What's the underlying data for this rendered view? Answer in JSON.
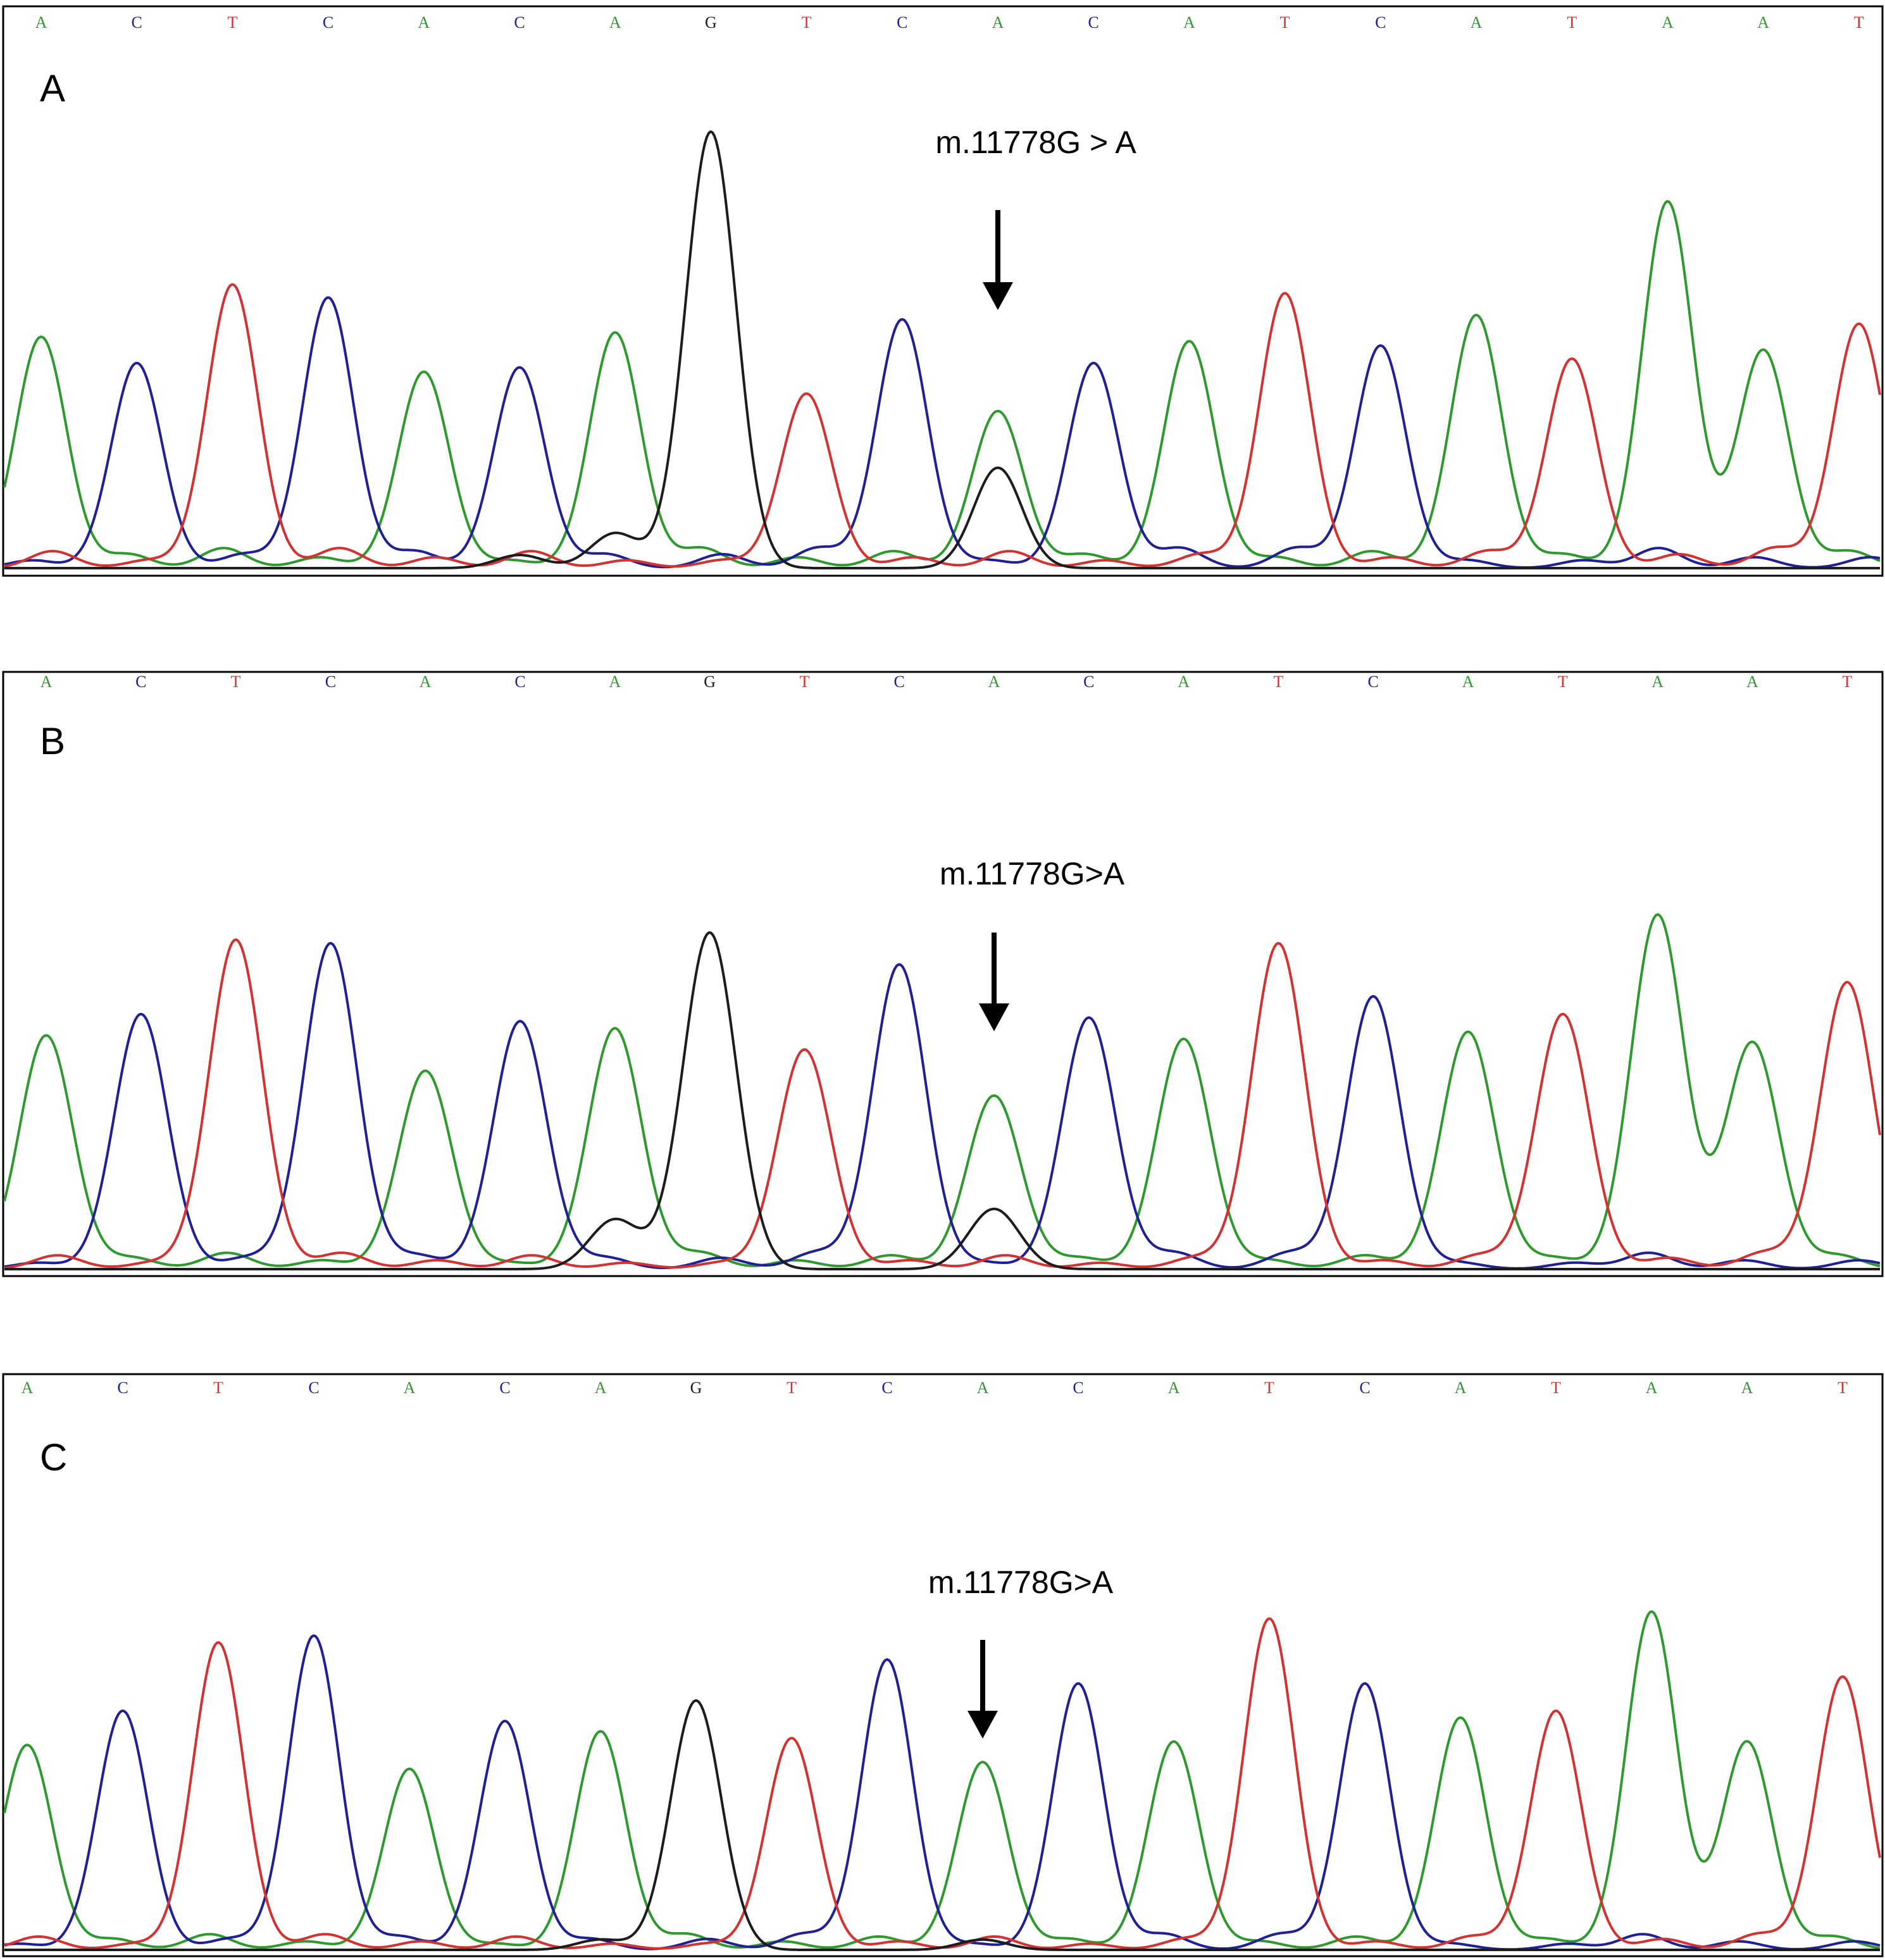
{
  "chart_data": [
    {
      "type": "line",
      "panel_label": "A",
      "annotation": {
        "text": "m.11778G > A",
        "base_index": 10
      },
      "sequence": [
        "A",
        "C",
        "T",
        "C",
        "A",
        "C",
        "A",
        "G",
        "T",
        "C",
        "A",
        "C",
        "A",
        "T",
        "C",
        "A",
        "T",
        "A",
        "A",
        "T"
      ],
      "peaks": [
        0.53,
        0.47,
        0.65,
        0.62,
        0.45,
        0.46,
        0.54,
        1.0,
        0.4,
        0.57,
        0.36,
        0.47,
        0.52,
        0.63,
        0.51,
        0.58,
        0.48,
        0.84,
        0.5,
        0.56
      ],
      "secondary": [
        {
          "base": "G",
          "index": 10,
          "height": 0.23
        },
        {
          "base": "G",
          "index": 6,
          "height": 0.08
        },
        {
          "base": "G",
          "index": 5,
          "height": 0.03
        }
      ]
    },
    {
      "type": "line",
      "panel_label": "B",
      "annotation": {
        "text": "m.11778G>A",
        "base_index": 10
      },
      "sequence": [
        "A",
        "C",
        "T",
        "C",
        "A",
        "C",
        "A",
        "G",
        "T",
        "C",
        "A",
        "C",
        "A",
        "T",
        "C",
        "A",
        "T",
        "A",
        "A",
        "T"
      ],
      "peaks": [
        0.66,
        0.72,
        0.93,
        0.92,
        0.56,
        0.7,
        0.68,
        0.95,
        0.62,
        0.86,
        0.49,
        0.71,
        0.65,
        0.92,
        0.77,
        0.67,
        0.72,
        1.0,
        0.64,
        0.81
      ],
      "secondary": [
        {
          "base": "G",
          "index": 10,
          "height": 0.17
        },
        {
          "base": "G",
          "index": 6,
          "height": 0.14
        }
      ]
    },
    {
      "type": "line",
      "panel_label": "C",
      "annotation": {
        "text": "m.11778G>A",
        "base_index": 10
      },
      "sequence": [
        "A",
        "C",
        "T",
        "C",
        "A",
        "C",
        "A",
        "G",
        "T",
        "C",
        "A",
        "C",
        "A",
        "T",
        "C",
        "A",
        "T",
        "A",
        "A",
        "T"
      ],
      "peaks": [
        0.6,
        0.7,
        0.9,
        0.92,
        0.53,
        0.67,
        0.64,
        0.73,
        0.62,
        0.85,
        0.55,
        0.78,
        0.61,
        0.97,
        0.78,
        0.68,
        0.7,
        0.99,
        0.61,
        0.8
      ],
      "secondary": [
        {
          "base": "G",
          "index": 10,
          "height": 0.03
        },
        {
          "base": "G",
          "index": 6,
          "height": 0.03
        }
      ]
    }
  ],
  "colors": {
    "A": "#2e9a2e",
    "C": "#1f1f96",
    "T": "#d43131",
    "G": "#1c1c1c"
  }
}
